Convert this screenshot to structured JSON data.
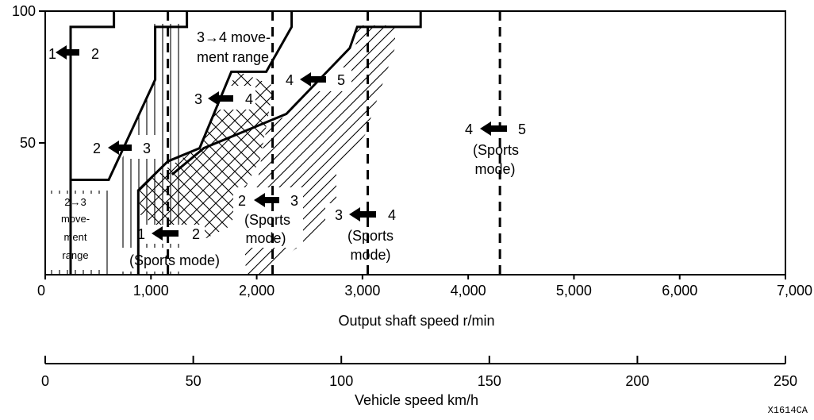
{
  "chart_data": {
    "type": "line",
    "title": "",
    "xlabel": "Output shaft speed r/min",
    "ylabel": "",
    "xlim": [
      0,
      7000
    ],
    "ylim": [
      0,
      100
    ],
    "x_ticks": [
      0,
      1000,
      2000,
      3000,
      4000,
      5000,
      6000,
      7000
    ],
    "x_tick_labels": [
      "0",
      "1,000",
      "2,000",
      "3,000",
      "4,000",
      "5,000",
      "6,000",
      "7,000"
    ],
    "y_ticks": [
      50,
      100
    ],
    "y_tick_labels": [
      "50",
      "100"
    ],
    "secondary_axis": {
      "label": "Vehicle speed km/h",
      "range": [
        0,
        250
      ],
      "ticks": [
        0,
        50,
        100,
        150,
        200,
        250
      ],
      "tick_labels": [
        "0",
        "50",
        "100",
        "150",
        "200",
        "250"
      ]
    },
    "upshift_lines": [
      {
        "name": "1→2",
        "points": [
          [
            240,
            0
          ],
          [
            240,
            94
          ],
          [
            650,
            94
          ],
          [
            650,
            100
          ]
        ]
      },
      {
        "name": "2→3",
        "points": [
          [
            240,
            36
          ],
          [
            600,
            36
          ],
          [
            1040,
            74
          ],
          [
            1040,
            94
          ],
          [
            1340,
            94
          ],
          [
            1340,
            100
          ]
        ]
      },
      {
        "name": "3→4",
        "points": [
          [
            880,
            0
          ],
          [
            880,
            32
          ],
          [
            1160,
            43
          ],
          [
            1460,
            48
          ],
          [
            1760,
            77
          ],
          [
            2090,
            77
          ],
          [
            2330,
            94
          ],
          [
            2330,
            100
          ]
        ]
      },
      {
        "name": "4→5",
        "points": [
          [
            1200,
            38
          ],
          [
            1500,
            48
          ],
          [
            2280,
            61
          ],
          [
            2880,
            86
          ],
          [
            2950,
            94
          ],
          [
            3550,
            94
          ],
          [
            3550,
            100
          ]
        ]
      }
    ],
    "sports_mode_lines": [
      {
        "name": "1→2 (Sports mode)",
        "x": 1160
      },
      {
        "name": "2→3 (Sports mode)",
        "x": 2150
      },
      {
        "name": "3→4 (Sports mode)",
        "x": 3050
      },
      {
        "name": "4→5 (Sports mode)",
        "x": 4300
      }
    ],
    "annotations": {
      "a12_from": "1",
      "a12_to": "2",
      "a23_from": "2",
      "a23_to": "3",
      "a34_from": "3",
      "a34_to": "4",
      "a45_from": "4",
      "a45_to": "5",
      "s12_from": "1",
      "s12_to": "2",
      "s12_note": "(Sports mode)",
      "s23_from": "2",
      "s23_to": "3",
      "s23_note_1": "(Sports",
      "s23_note_2": "mode)",
      "s34_from": "3",
      "s34_to": "4",
      "s34_note_1": "(Sports",
      "s34_note_2": "mode)",
      "s45_from": "4",
      "s45_to": "5",
      "s45_note_1": "(Sports",
      "s45_note_2": "mode)",
      "range34_line1": "3→4 move-",
      "range34_line2": "ment  range",
      "range23_line1": "2→3",
      "range23_line2": "move-",
      "range23_line3": "ment",
      "range23_line4": "range"
    },
    "figure_code": "X1614CA"
  }
}
